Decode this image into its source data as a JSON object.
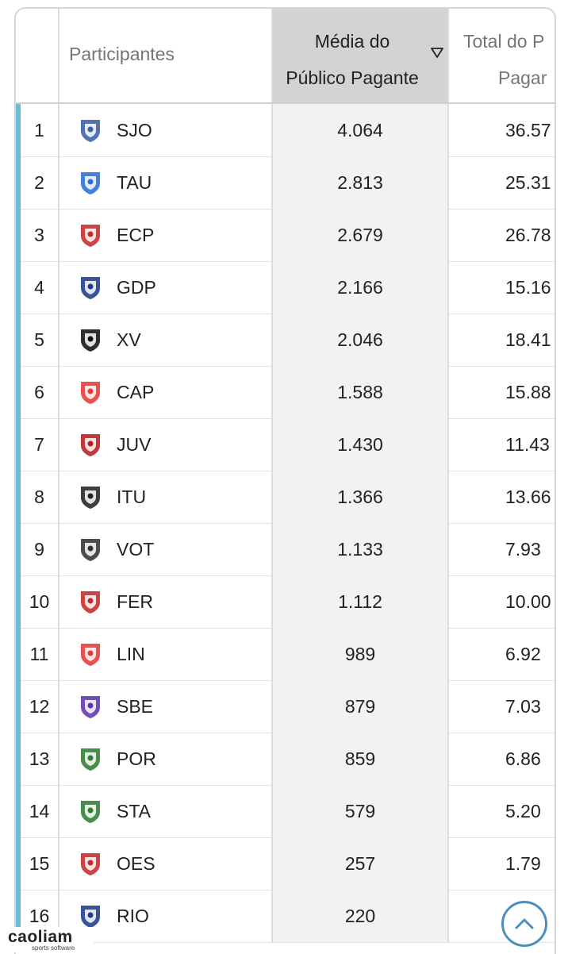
{
  "header": {
    "participants_label": "Participantes",
    "avg_label_line1": "Média do",
    "avg_label_line2": "Público Pagante",
    "total_label_line1": "Total do P",
    "total_label_line2": "Pagar"
  },
  "rows": [
    {
      "rank": "1",
      "team": "SJO",
      "avg": "4.064",
      "total": "36.57",
      "logo_color": "#3a5fa8"
    },
    {
      "rank": "2",
      "team": "TAU",
      "avg": "2.813",
      "total": "25.31",
      "logo_color": "#2a6fd6"
    },
    {
      "rank": "3",
      "team": "ECP",
      "avg": "2.679",
      "total": "26.78",
      "logo_color": "#c62828"
    },
    {
      "rank": "4",
      "team": "GDP",
      "avg": "2.166",
      "total": "15.16",
      "logo_color": "#1f3a8a"
    },
    {
      "rank": "5",
      "team": "XV",
      "avg": "2.046",
      "total": "18.41",
      "logo_color": "#111111"
    },
    {
      "rank": "6",
      "team": "CAP",
      "avg": "1.588",
      "total": "15.88",
      "logo_color": "#e53935"
    },
    {
      "rank": "7",
      "team": "JUV",
      "avg": "1.430",
      "total": "11.43",
      "logo_color": "#b71c1c"
    },
    {
      "rank": "8",
      "team": "ITU",
      "avg": "1.366",
      "total": "13.66",
      "logo_color": "#222222"
    },
    {
      "rank": "9",
      "team": "VOT",
      "avg": "1.133",
      "total": "7.93",
      "logo_color": "#333333"
    },
    {
      "rank": "10",
      "team": "FER",
      "avg": "1.112",
      "total": "10.00",
      "logo_color": "#c62828"
    },
    {
      "rank": "11",
      "team": "LIN",
      "avg": "989",
      "total": "6.92",
      "logo_color": "#e53935"
    },
    {
      "rank": "12",
      "team": "SBE",
      "avg": "879",
      "total": "7.03",
      "logo_color": "#5e35b1"
    },
    {
      "rank": "13",
      "team": "POR",
      "avg": "859",
      "total": "6.86",
      "logo_color": "#2e7d32"
    },
    {
      "rank": "14",
      "team": "STA",
      "avg": "579",
      "total": "5.20",
      "logo_color": "#2e7d32"
    },
    {
      "rank": "15",
      "team": "OES",
      "avg": "257",
      "total": "1.79",
      "logo_color": "#c62828"
    },
    {
      "rank": "16",
      "team": "RIO",
      "avg": "220",
      "total": "",
      "logo_color": "#1f3a8a"
    }
  ],
  "watermark": {
    "brand": "caoliam",
    "sub": "sports software"
  },
  "colors": {
    "accent": "#6bbdd6",
    "sorted_header_bg": "#d3d3d3",
    "sorted_cell_bg": "#f2f2f2",
    "scroll_button": "#4a90b8"
  },
  "icons": {
    "sort": "sort-desc-icon",
    "scroll": "chevron-up-icon"
  }
}
